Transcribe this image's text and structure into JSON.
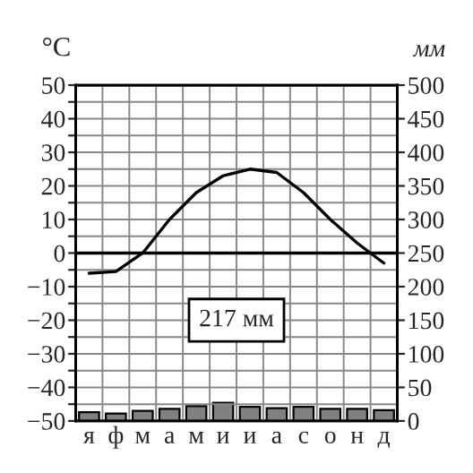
{
  "chart_data": {
    "type": "line",
    "categories": [
      "я",
      "ф",
      "м",
      "а",
      "м",
      "и",
      "и",
      "а",
      "с",
      "о",
      "н",
      "д"
    ],
    "ylabel": "°C",
    "y2label": "мм",
    "series": [
      {
        "color": "#000000",
        "values": [
          -6,
          -5.5,
          0,
          10,
          18,
          23,
          25,
          24,
          18,
          10,
          3,
          -3
        ]
      },
      {
        "type": "bar",
        "axis": "y2",
        "color": "#808080",
        "values": [
          13,
          11,
          15,
          18,
          22,
          27,
          21,
          19,
          21,
          18,
          18,
          16
        ]
      }
    ],
    "ylim": [
      -50,
      50
    ],
    "yticks": [
      {
        "value": -50,
        "label": "−50"
      },
      {
        "value": -45,
        "label": null
      },
      {
        "value": -40,
        "label": "−40"
      },
      {
        "value": -35,
        "label": null
      },
      {
        "value": -30,
        "label": "−30"
      },
      {
        "value": -25,
        "label": null
      },
      {
        "value": -20,
        "label": "−20"
      },
      {
        "value": -15,
        "label": null
      },
      {
        "value": -10,
        "label": "−10"
      },
      {
        "value": -5,
        "label": null
      },
      0,
      {
        "value": 5,
        "label": null
      },
      10,
      {
        "value": 15,
        "label": null
      },
      20,
      {
        "value": 25,
        "label": null
      },
      30,
      {
        "value": 35,
        "label": null
      },
      40,
      {
        "value": 45,
        "label": null
      },
      50
    ],
    "y2lim": [
      0,
      500
    ],
    "y2ticks": [
      0,
      50,
      100,
      150,
      200,
      250,
      300,
      350,
      400,
      450,
      500
    ],
    "ref_lines": [
      {
        "axis": "y",
        "value": 0,
        "color": "#000000"
      }
    ],
    "annotations": [
      "217 мм"
    ],
    "grid": true,
    "legend": false,
    "marker": "none",
    "line_style": "solid"
  }
}
